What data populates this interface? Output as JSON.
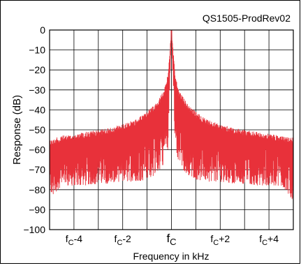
{
  "chart_data": {
    "type": "line",
    "title": "QS1505-ProdRev02",
    "xlabel": "Frequency in kHz",
    "ylabel": "Response (dB)",
    "ylim": [
      -100,
      0
    ],
    "xlim": [
      -5,
      5
    ],
    "grid": true,
    "y_ticks": [
      0,
      -10,
      -20,
      -30,
      -40,
      -50,
      -60,
      -70,
      -80,
      -90,
      -100
    ],
    "y_tick_labels": [
      "0",
      "−10",
      "−20",
      "−30",
      "−40",
      "−50",
      "−60",
      "−70",
      "−80",
      "−90",
      "−100"
    ],
    "x_ticks": [
      -4,
      -2,
      0,
      2,
      4
    ],
    "x_tick_labels": [
      {
        "base": "f",
        "sub": "C",
        "suffix": "-4"
      },
      {
        "base": "f",
        "sub": "C",
        "suffix": "-2"
      },
      {
        "base": "f",
        "sub": "C",
        "suffix": ""
      },
      {
        "base": "f",
        "sub": "C",
        "suffix": "+2"
      },
      {
        "base": "f",
        "sub": "C",
        "suffix": "+4"
      }
    ],
    "series": [
      {
        "color": "#e8313a",
        "description_points": {
          "x": [
            -5.0,
            -4.5,
            -4.0,
            -3.5,
            -3.0,
            -2.5,
            -2.0,
            -1.5,
            -1.0,
            -0.6,
            -0.3,
            -0.15,
            0.0,
            0.15,
            0.3,
            0.6,
            1.0,
            1.5,
            2.0,
            2.5,
            3.0,
            3.5,
            4.0,
            4.5,
            5.0
          ],
          "upper": [
            -55,
            -53,
            -52,
            -51,
            -50,
            -49,
            -47,
            -45,
            -41,
            -36,
            -30,
            -22,
            0,
            -22,
            -30,
            -36,
            -41,
            -45,
            -47,
            -49,
            -50,
            -51,
            -52,
            -53,
            -54
          ],
          "lower": [
            -85,
            -78,
            -78,
            -78,
            -77,
            -77,
            -76,
            -76,
            -75,
            -72,
            -67,
            -60,
            0,
            -60,
            -67,
            -72,
            -75,
            -76,
            -76,
            -77,
            -77,
            -78,
            -78,
            -78,
            -86
          ]
        }
      }
    ]
  }
}
